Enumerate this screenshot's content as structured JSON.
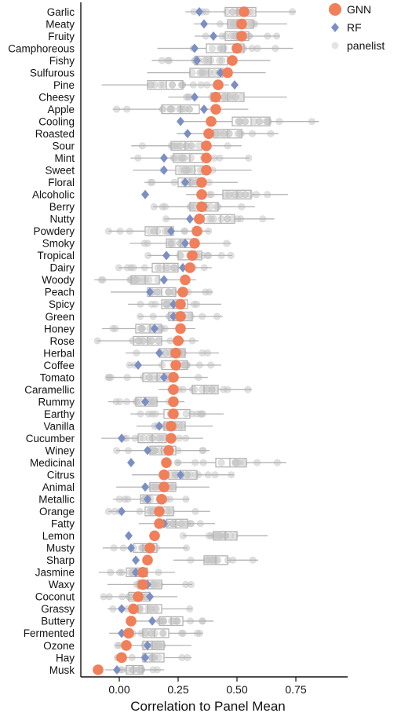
{
  "chart_data": {
    "type": "scatter",
    "xlabel": "Correlation to Panel Mean",
    "ylabel": "",
    "xlim": [
      -0.17,
      0.97
    ],
    "xticks": [
      "0.00",
      "0.25",
      "0.50",
      "0.75"
    ],
    "xtick_values": [
      0.0,
      0.25,
      0.5,
      0.75
    ],
    "grid": false,
    "legend_position": "top-right",
    "colors": {
      "GNN": "#f07f5a",
      "RF": "#7b8fc4",
      "panelist": "#c8c8c8",
      "box": "#b3b3b3"
    },
    "legend": [
      {
        "label": "GNN",
        "marker": "circle"
      },
      {
        "label": "RF",
        "marker": "diamond"
      },
      {
        "label": "panelist",
        "marker": "circle-light"
      }
    ],
    "categories": [
      "Garlic",
      "Meaty",
      "Fruity",
      "Camphoreous",
      "Fishy",
      "Sulfurous",
      "Pine",
      "Cheesy",
      "Apple",
      "Cooling",
      "Roasted",
      "Sour",
      "Mint",
      "Sweet",
      "Floral",
      "Alcoholic",
      "Berry",
      "Nutty",
      "Powdery",
      "Smoky",
      "Tropical",
      "Dairy",
      "Woody",
      "Peach",
      "Spicy",
      "Green",
      "Honey",
      "Rose",
      "Herbal",
      "Coffee",
      "Tomato",
      "Caramellic",
      "Rummy",
      "Earthy",
      "Vanilla",
      "Cucumber",
      "Winey",
      "Medicinal",
      "Citrus",
      "Animal",
      "Metallic",
      "Orange",
      "Fatty",
      "Lemon",
      "Musty",
      "Sharp",
      "Jasmine",
      "Waxy",
      "Coconut",
      "Grassy",
      "Buttery",
      "Fermented",
      "Ozone",
      "Hay",
      "Musk"
    ],
    "series": [
      {
        "name": "GNN",
        "values": [
          0.53,
          0.52,
          0.52,
          0.5,
          0.48,
          0.46,
          0.42,
          0.41,
          0.41,
          0.39,
          0.38,
          0.37,
          0.37,
          0.37,
          0.35,
          0.35,
          0.35,
          0.34,
          0.33,
          0.32,
          0.31,
          0.3,
          0.28,
          0.27,
          0.26,
          0.26,
          0.26,
          0.25,
          0.24,
          0.24,
          0.23,
          0.23,
          0.23,
          0.23,
          0.22,
          0.22,
          0.21,
          0.2,
          0.19,
          0.19,
          0.18,
          0.17,
          0.17,
          0.15,
          0.13,
          0.12,
          0.1,
          0.1,
          0.08,
          0.06,
          0.05,
          0.04,
          0.03,
          0.01,
          -0.09
        ]
      },
      {
        "name": "RF",
        "values": [
          0.34,
          0.36,
          0.4,
          0.32,
          0.33,
          0.43,
          0.49,
          0.32,
          0.36,
          0.26,
          0.29,
          0.37,
          0.19,
          0.19,
          0.28,
          0.11,
          0.36,
          0.3,
          0.22,
          0.28,
          0.2,
          0.27,
          0.19,
          0.13,
          0.23,
          0.23,
          0.15,
          0.26,
          0.17,
          0.08,
          0.19,
          0.22,
          0.11,
          0.23,
          0.17,
          0.01,
          0.12,
          0.05,
          0.26,
          0.11,
          0.12,
          0.01,
          0.19,
          0.04,
          0.05,
          0.07,
          0.07,
          0.12,
          0.13,
          0.01,
          0.14,
          0.01,
          0.12,
          0.11,
          -0.01
        ]
      },
      {
        "name": "boxes",
        "q1": [
          0.45,
          0.46,
          0.45,
          0.37,
          0.32,
          0.3,
          0.12,
          0.39,
          0.18,
          0.48,
          0.4,
          0.22,
          0.23,
          0.24,
          0.25,
          0.44,
          0.3,
          0.36,
          0.11,
          0.2,
          0.25,
          0.14,
          0.05,
          0.12,
          0.18,
          0.21,
          0.07,
          0.06,
          0.17,
          0.18,
          0.1,
          0.31,
          0.07,
          0.19,
          0.19,
          0.08,
          0.13,
          0.41,
          0.21,
          0.13,
          0.09,
          0.11,
          0.2,
          0.4,
          0.06,
          0.36,
          0.03,
          0.08,
          0.04,
          0.08,
          0.17,
          0.1,
          0.1,
          0.1,
          0.03
        ],
        "median": [
          0.5,
          0.5,
          0.5,
          0.45,
          0.39,
          0.38,
          0.2,
          0.46,
          0.26,
          0.56,
          0.46,
          0.28,
          0.3,
          0.32,
          0.3,
          0.5,
          0.37,
          0.43,
          0.16,
          0.26,
          0.3,
          0.19,
          0.11,
          0.18,
          0.23,
          0.26,
          0.13,
          0.12,
          0.22,
          0.23,
          0.16,
          0.36,
          0.11,
          0.24,
          0.23,
          0.14,
          0.18,
          0.47,
          0.27,
          0.18,
          0.13,
          0.17,
          0.24,
          0.45,
          0.1,
          0.41,
          0.07,
          0.12,
          0.09,
          0.12,
          0.22,
          0.15,
          0.14,
          0.14,
          0.06
        ],
        "q3": [
          0.58,
          0.57,
          0.55,
          0.53,
          0.46,
          0.44,
          0.27,
          0.53,
          0.34,
          0.64,
          0.52,
          0.35,
          0.37,
          0.38,
          0.36,
          0.56,
          0.42,
          0.49,
          0.23,
          0.32,
          0.35,
          0.25,
          0.17,
          0.24,
          0.29,
          0.31,
          0.18,
          0.18,
          0.28,
          0.29,
          0.22,
          0.42,
          0.16,
          0.3,
          0.28,
          0.2,
          0.24,
          0.54,
          0.33,
          0.24,
          0.18,
          0.23,
          0.29,
          0.5,
          0.16,
          0.46,
          0.12,
          0.18,
          0.13,
          0.18,
          0.27,
          0.21,
          0.19,
          0.19,
          0.1
        ]
      }
    ]
  }
}
